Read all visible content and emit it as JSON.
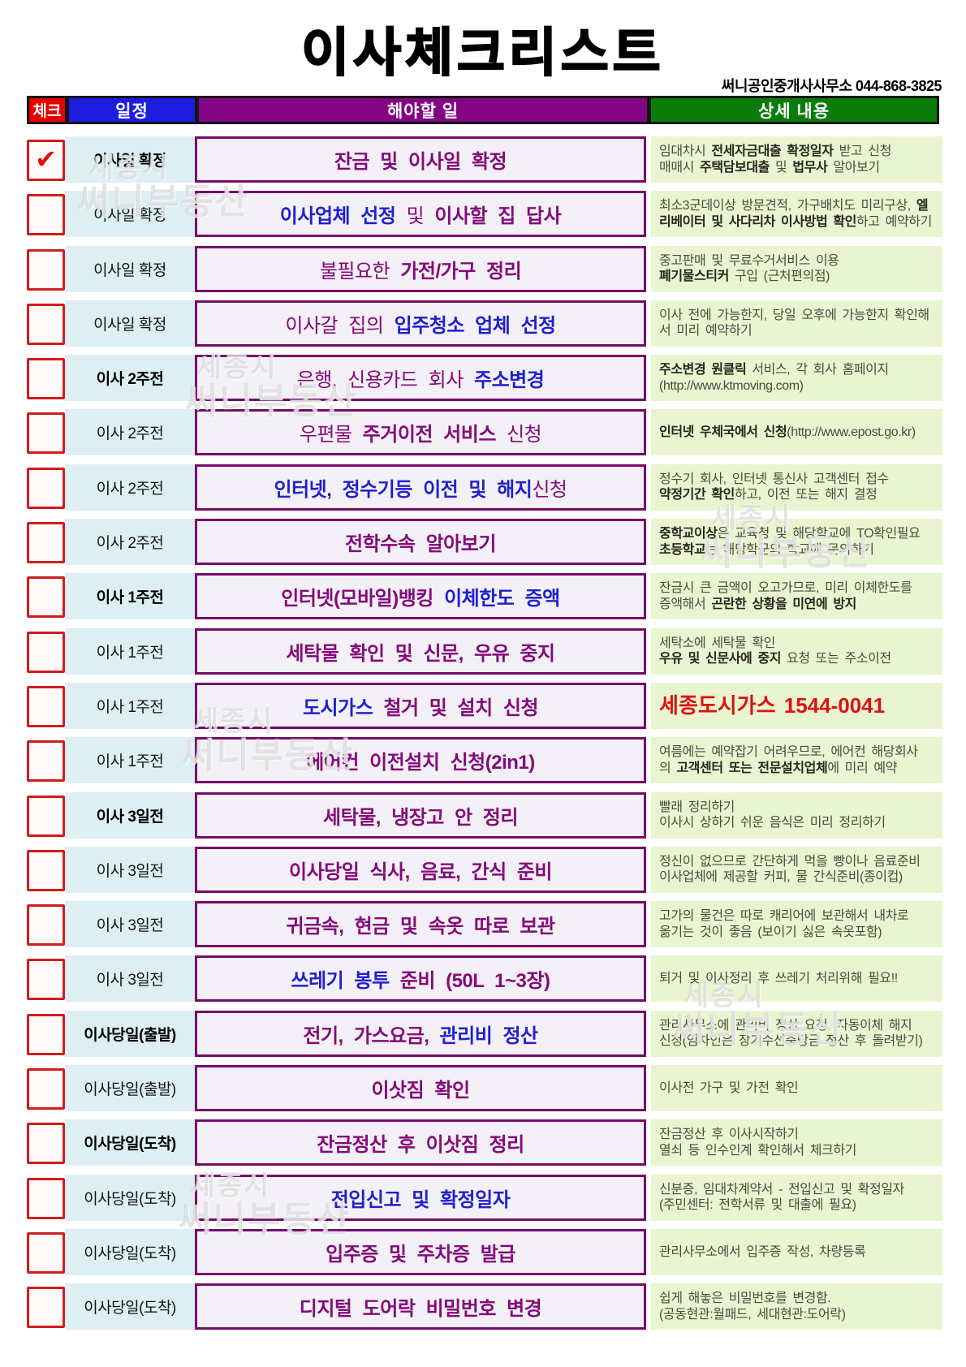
{
  "title": "이사체크리스트",
  "subtitle": "써니공인중개사사무소 044-868-3825",
  "columns": {
    "check": "체크",
    "schedule": "일정",
    "task": "해야할 일",
    "detail": "상세 내용"
  },
  "checkmark": "✔",
  "watermark": {
    "line1": "세종시",
    "line2": "써니부동산"
  },
  "colors": {
    "header_check": "#e60000",
    "header_schedule": "#1d1de0",
    "header_task": "#840484",
    "header_detail": "#0a7c0a",
    "task_purple": "#840a7a",
    "task_blue": "#2020cc",
    "detail_red": "#dd1111",
    "checkbox_border": "#cf1d1d",
    "task_border": "#760b6b",
    "schedule_bg": "#ddeff3",
    "task_bg": "#f4f0f7",
    "detail_bg": "#e9f5d0"
  },
  "rows": [
    {
      "checked": true,
      "schedule": "이사일 확정",
      "schedule_bold": true,
      "task": [
        {
          "t": "잔금 및 이사일 확정",
          "b": true
        }
      ],
      "detail": [
        [
          {
            "t": "임대차시 "
          },
          {
            "t": "전세자금대출 확정일자",
            "b": true
          },
          {
            "t": " 받고 신청"
          }
        ],
        [
          {
            "t": "매매시 "
          },
          {
            "t": "주택담보대출",
            "b": true
          },
          {
            "t": " 및 "
          },
          {
            "t": "법무사",
            "b": true
          },
          {
            "t": " 알아보기"
          }
        ]
      ]
    },
    {
      "checked": false,
      "schedule": "이사일 확정",
      "schedule_bold": false,
      "task": [
        {
          "t": "이사업체 선정",
          "b": true,
          "c": "blue"
        },
        {
          "t": " 및 "
        },
        {
          "t": "이사할 집 답사",
          "b": true
        }
      ],
      "detail": [
        [
          {
            "t": "최소3군데이상 방문견적, 가구배치도 미리구상, "
          },
          {
            "t": "엘리베이터 및 사다리차 이사방법 확인",
            "b": true
          },
          {
            "t": "하고 예약하기"
          }
        ]
      ]
    },
    {
      "checked": false,
      "schedule": "이사일 확정",
      "schedule_bold": false,
      "task": [
        {
          "t": "불필요한 "
        },
        {
          "t": "가전/가구 정리",
          "b": true
        }
      ],
      "detail": [
        [
          {
            "t": "중고판매 및 무료수거서비스 이용"
          }
        ],
        [
          {
            "t": "폐기물스티커",
            "b": true
          },
          {
            "t": " 구입 (근처편의점)"
          }
        ]
      ]
    },
    {
      "checked": false,
      "schedule": "이사일 확정",
      "schedule_bold": false,
      "task": [
        {
          "t": "이사갈 집의 "
        },
        {
          "t": "입주청소 업체 선정",
          "b": true,
          "c": "blue"
        }
      ],
      "detail": [
        [
          {
            "t": "이사 전에 가능한지, 당일 오후에 가능한지 확인해서 미리 예약하기"
          }
        ]
      ]
    },
    {
      "checked": false,
      "schedule": "이사 2주전",
      "schedule_bold": true,
      "task": [
        {
          "t": "은행, 신용카드 회사 "
        },
        {
          "t": "주소변경",
          "b": true,
          "c": "blue"
        }
      ],
      "detail": [
        [
          {
            "t": "주소변경 원클릭",
            "b": true
          },
          {
            "t": " 서비스, 각 회사 홈페이지"
          }
        ],
        [
          {
            "t": "(http://www.ktmoving.com)"
          }
        ]
      ]
    },
    {
      "checked": false,
      "schedule": "이사 2주전",
      "schedule_bold": false,
      "task": [
        {
          "t": "우편물 "
        },
        {
          "t": "주거이전 서비스",
          "b": true
        },
        {
          "t": " 신청"
        }
      ],
      "detail": [
        [
          {
            "t": "인터넷 우체국에서 신청",
            "b": true
          },
          {
            "t": "(http://www.epost.go.kr)"
          }
        ]
      ]
    },
    {
      "checked": false,
      "schedule": "이사 2주전",
      "schedule_bold": false,
      "task": [
        {
          "t": "인터넷, 정수기등 이전 및 해지",
          "b": true,
          "c": "blue"
        },
        {
          "t": "신청"
        }
      ],
      "detail": [
        [
          {
            "t": "정수기 회사, 인터넷 통신사 고객센터 접수"
          }
        ],
        [
          {
            "t": "약정기간 확인",
            "b": true
          },
          {
            "t": "하고, 이전 또는 해지 결정"
          }
        ]
      ]
    },
    {
      "checked": false,
      "schedule": "이사 2주전",
      "schedule_bold": false,
      "task": [
        {
          "t": "전학수속 알아보기",
          "b": true
        }
      ],
      "detail": [
        [
          {
            "t": "중학교이상",
            "b": true
          },
          {
            "t": "은 교육청 및 해당학교에 TO확인필요"
          }
        ],
        [
          {
            "t": "초등학교",
            "b": true
          },
          {
            "t": "는 해당학군의 학교에 문의하기"
          }
        ]
      ]
    },
    {
      "checked": false,
      "schedule": "이사 1주전",
      "schedule_bold": true,
      "task": [
        {
          "t": "인터넷(모바일)뱅킹 ",
          "b": true
        },
        {
          "t": "이체한도 증액",
          "b": true,
          "c": "blue"
        }
      ],
      "detail": [
        [
          {
            "t": "잔금시 큰 금액이 오고가므로, 미리 이체한도를"
          }
        ],
        [
          {
            "t": "증액해서 "
          },
          {
            "t": "곤란한 상황을 미연에 방지",
            "b": true
          }
        ]
      ]
    },
    {
      "checked": false,
      "schedule": "이사 1주전",
      "schedule_bold": false,
      "task": [
        {
          "t": "세탁물 확인 및 신문, 우유 중지",
          "b": true
        }
      ],
      "detail": [
        [
          {
            "t": "세탁소에 세탁물 확인"
          }
        ],
        [
          {
            "t": "우유 및 신문사에 중지",
            "b": true
          },
          {
            "t": " 요청 또는 주소이전"
          }
        ]
      ]
    },
    {
      "checked": false,
      "schedule": "이사 1주전",
      "schedule_bold": false,
      "task": [
        {
          "t": "도시가스",
          "b": true,
          "c": "blue"
        },
        {
          "t": " 철거 및 설치 신청",
          "b": true
        }
      ],
      "detail": [
        [
          {
            "t": "세종도시가스 1544-0041",
            "b": true,
            "c": "red",
            "lg": true
          }
        ]
      ]
    },
    {
      "checked": false,
      "schedule": "이사 1주전",
      "schedule_bold": false,
      "task": [
        {
          "t": "에어컨 이전설치 신청(2in1)",
          "b": true
        }
      ],
      "detail": [
        [
          {
            "t": "여름에는 예약잡기 어려우므로, 에어컨 해당회사"
          }
        ],
        [
          {
            "t": "의 "
          },
          {
            "t": "고객센터 또는 전문설치업체",
            "b": true
          },
          {
            "t": "에 미리 예약"
          }
        ]
      ]
    },
    {
      "checked": false,
      "schedule": "이사 3일전",
      "schedule_bold": true,
      "task": [
        {
          "t": "세탁물, 냉장고 안 정리",
          "b": true
        }
      ],
      "detail": [
        [
          {
            "t": "빨래 정리하기"
          }
        ],
        [
          {
            "t": "이사시 상하기 쉬운 음식은 미리 정리하기"
          }
        ]
      ]
    },
    {
      "checked": false,
      "schedule": "이사 3일전",
      "schedule_bold": false,
      "task": [
        {
          "t": "이사당일 식사, 음료, 간식 준비",
          "b": true
        }
      ],
      "detail": [
        [
          {
            "t": "정신이 없으므로 간단하게 먹을 빵이나 음료준비"
          }
        ],
        [
          {
            "t": "이사업체에 제공할 커피, 물 간식준비(종이컵)"
          }
        ]
      ]
    },
    {
      "checked": false,
      "schedule": "이사 3일전",
      "schedule_bold": false,
      "task": [
        {
          "t": "귀금속, 현금 및 속옷 따로 보관",
          "b": true
        }
      ],
      "detail": [
        [
          {
            "t": "고가의 물건은 따로 캐리어에 보관해서 내차로"
          }
        ],
        [
          {
            "t": "옮기는 것이 좋음 (보이기 싫은 속옷포함)"
          }
        ]
      ]
    },
    {
      "checked": false,
      "schedule": "이사 3일전",
      "schedule_bold": false,
      "task": [
        {
          "t": "쓰레기 봉투",
          "b": true,
          "c": "blue"
        },
        {
          "t": " 준비 (50L 1~3장)",
          "b": true
        }
      ],
      "detail": [
        [
          {
            "t": "퇴거 및 이사정리 후 쓰레기 처리위해 필요!!"
          }
        ]
      ]
    },
    {
      "checked": false,
      "schedule": "이사당일(출발)",
      "schedule_bold": true,
      "task": [
        {
          "t": "전기, 가스요금, ",
          "b": true
        },
        {
          "t": "관리비 정산",
          "b": true,
          "c": "blue"
        }
      ],
      "detail": [
        [
          {
            "t": "관리사무소에 관리비 정산 요청, 자동이체 해지"
          }
        ],
        [
          {
            "t": "신청(임차인은 장기수선충당금 정산 후 돌려받기)"
          }
        ]
      ]
    },
    {
      "checked": false,
      "schedule": "이사당일(출발)",
      "schedule_bold": false,
      "task": [
        {
          "t": "이삿짐 확인",
          "b": true
        }
      ],
      "detail": [
        [
          {
            "t": "이사전 가구 및 가전 확인"
          }
        ]
      ]
    },
    {
      "checked": false,
      "schedule": "이사당일(도착)",
      "schedule_bold": true,
      "task": [
        {
          "t": "잔금정산 후 이삿짐 정리",
          "b": true
        }
      ],
      "detail": [
        [
          {
            "t": "잔금정산 후 이사시작하기"
          }
        ],
        [
          {
            "t": "열쇠 등 인수인계 확인해서 체크하기"
          }
        ]
      ]
    },
    {
      "checked": false,
      "schedule": "이사당일(도착)",
      "schedule_bold": false,
      "task": [
        {
          "t": "전입신고 및 확정일자",
          "b": true,
          "c": "blue"
        }
      ],
      "detail": [
        [
          {
            "t": "신분증, 임대차계약서 - 전입신고 및 확정일자"
          }
        ],
        [
          {
            "t": "(주민센터: 전학서류 및 대출에 필요)"
          }
        ]
      ]
    },
    {
      "checked": false,
      "schedule": "이사당일(도착)",
      "schedule_bold": false,
      "task": [
        {
          "t": "입주증 및 주차증 발급",
          "b": true
        }
      ],
      "detail": [
        [
          {
            "t": "관리사무소에서 입주증 작성, 차량등록"
          }
        ]
      ]
    },
    {
      "checked": false,
      "schedule": "이사당일(도착)",
      "schedule_bold": false,
      "task": [
        {
          "t": "디지털 도어락 비밀번호 변경",
          "b": true
        }
      ],
      "detail": [
        [
          {
            "t": "쉽게 해놓은 비밀번호를 변경함."
          }
        ],
        [
          {
            "t": "(공동현관:월패드, 세대현관:도어락)"
          }
        ]
      ]
    }
  ]
}
